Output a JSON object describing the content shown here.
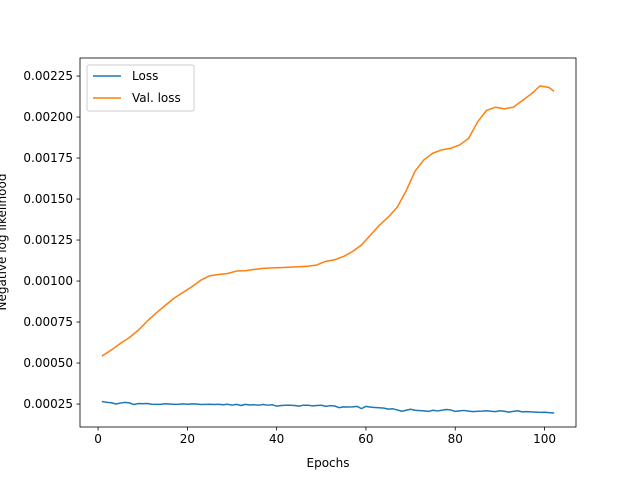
{
  "chart_data": {
    "type": "line",
    "title": "",
    "xlabel": "Epochs",
    "ylabel": "Negative log likelihood",
    "xlim": [
      -4.05,
      107.05
    ],
    "ylim": [
      0.00011,
      0.00236
    ],
    "xticks": [
      0,
      20,
      40,
      60,
      80,
      100
    ],
    "yticks": [
      0.00025,
      0.0005,
      0.00075,
      0.001,
      0.00125,
      0.0015,
      0.00175,
      0.002,
      0.00225
    ],
    "ytick_labels": [
      "0.00025",
      "0.00050",
      "0.00075",
      "0.00100",
      "0.00125",
      "0.00150",
      "0.00175",
      "0.00200",
      "0.00225"
    ],
    "grid": false,
    "legend_position": "top-left",
    "series": [
      {
        "name": "Loss",
        "color": "#1f77b4",
        "x": [
          1,
          2,
          3,
          4,
          5,
          6,
          7,
          8,
          9,
          10,
          11,
          12,
          13,
          14,
          15,
          16,
          17,
          18,
          19,
          20,
          21,
          22,
          23,
          24,
          25,
          26,
          27,
          28,
          29,
          30,
          31,
          32,
          33,
          34,
          35,
          36,
          37,
          38,
          39,
          40,
          41,
          42,
          43,
          44,
          45,
          46,
          47,
          48,
          49,
          50,
          51,
          52,
          53,
          54,
          55,
          56,
          57,
          58,
          59,
          60,
          61,
          62,
          63,
          64,
          65,
          66,
          67,
          68,
          69,
          70,
          71,
          72,
          73,
          74,
          75,
          76,
          77,
          78,
          79,
          80,
          81,
          82,
          83,
          84,
          85,
          86,
          87,
          88,
          89,
          90,
          91,
          92,
          93,
          94,
          95,
          96,
          97,
          98,
          99,
          100,
          101,
          102
        ],
        "y": [
          0.000265,
          0.00026,
          0.000258,
          0.00025,
          0.000256,
          0.00026,
          0.000257,
          0.000247,
          0.000253,
          0.000252,
          0.000253,
          0.000249,
          0.000248,
          0.000248,
          0.000252,
          0.00025,
          0.000248,
          0.000249,
          0.000251,
          0.000249,
          0.000251,
          0.00025,
          0.000247,
          0.000248,
          0.000249,
          0.000247,
          0.000249,
          0.000246,
          0.000249,
          0.000243,
          0.000248,
          0.000241,
          0.000248,
          0.000244,
          0.000246,
          0.000243,
          0.000247,
          0.000243,
          0.000246,
          0.000237,
          0.000241,
          0.000243,
          0.000243,
          0.000241,
          0.000237,
          0.000243,
          0.000243,
          0.000239,
          0.000241,
          0.000243,
          0.000236,
          0.00024,
          0.000238,
          0.000228,
          0.000233,
          0.000232,
          0.000233,
          0.000236,
          0.000222,
          0.000236,
          0.000231,
          0.000229,
          0.000227,
          0.000225,
          0.000219,
          0.000221,
          0.000214,
          0.000206,
          0.000212,
          0.000218,
          0.000212,
          0.00021,
          0.000208,
          0.000205,
          0.000212,
          0.000208,
          0.000212,
          0.000217,
          0.000214,
          0.000205,
          0.000208,
          0.000211,
          0.000207,
          0.000204,
          0.000206,
          0.000207,
          0.000209,
          0.000206,
          0.000204,
          0.000209,
          0.000206,
          0.000201,
          0.000205,
          0.000209,
          0.000202,
          0.000204,
          0.000202,
          0.000201,
          0.000199,
          0.0002,
          0.000198,
          0.000196
        ]
      },
      {
        "name": "Val. loss",
        "color": "#ff7f0e",
        "x": [
          1,
          3,
          5,
          7,
          9,
          11,
          13,
          15,
          17,
          19,
          21,
          23,
          25,
          27,
          29,
          31,
          33,
          35,
          37,
          39,
          41,
          43,
          45,
          47,
          49,
          51,
          53,
          55,
          57,
          59,
          61,
          63,
          65,
          67,
          69,
          71,
          73,
          75,
          77,
          79,
          81,
          83,
          85,
          87,
          89,
          91,
          93,
          95,
          97,
          99,
          101,
          102
        ],
        "y": [
          0.000545,
          0.00058,
          0.00062,
          0.000655,
          0.0007,
          0.000755,
          0.000805,
          0.00085,
          0.000895,
          0.00093,
          0.000965,
          0.001005,
          0.001032,
          0.00104,
          0.001046,
          0.001061,
          0.001063,
          0.001071,
          0.001077,
          0.00108,
          0.001082,
          0.001085,
          0.001087,
          0.00109,
          0.001098,
          0.00112,
          0.00113,
          0.00115,
          0.00118,
          0.00122,
          0.00128,
          0.00134,
          0.00139,
          0.00145,
          0.00155,
          0.00167,
          0.00174,
          0.00178,
          0.0018,
          0.00181,
          0.00183,
          0.00187,
          0.00197,
          0.00204,
          0.00206,
          0.00205,
          0.00206,
          0.0021,
          0.00214,
          0.00219,
          0.00218,
          0.00216
        ]
      }
    ]
  }
}
